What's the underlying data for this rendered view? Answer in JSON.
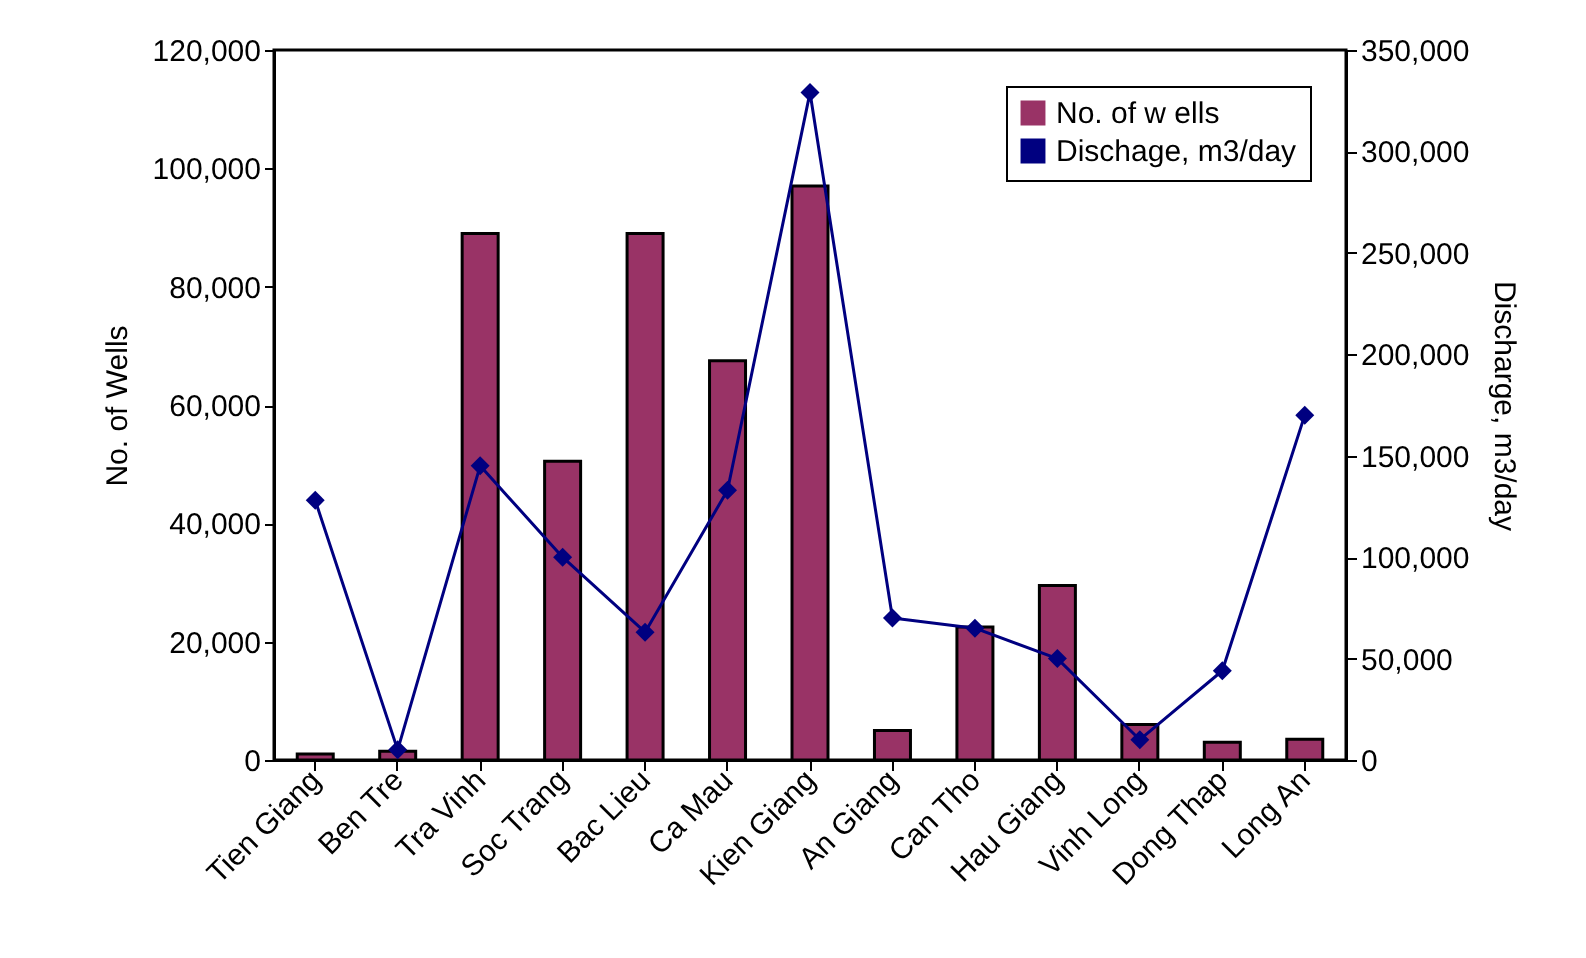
{
  "chart_data": {
    "type": "bar",
    "xlabel": null,
    "ylabel": "No. of Wells",
    "y2label": "Discharge, m3/day",
    "categories": [
      "Tien Giang",
      "Ben Tre",
      "Tra Vinh",
      "Soc Trang",
      "Bac Lieu",
      "Ca Mau",
      "Kien Giang",
      "An Giang",
      "Can Tho",
      "Hau Giang",
      "Vinh Long",
      "Dong Thap",
      "Long An"
    ],
    "series": [
      {
        "name": "No. of w ells",
        "color": "#993366",
        "values": [
          1000,
          1500,
          89000,
          50500,
          89000,
          67500,
          97000,
          5000,
          22500,
          29500,
          6000,
          3000,
          3500
        ]
      },
      {
        "name": "Dischage, m3/day",
        "type": "line",
        "axis": "y2",
        "color": "#000080",
        "values": [
          128000,
          5000,
          145000,
          100000,
          63000,
          133000,
          329000,
          70000,
          65000,
          50000,
          10000,
          44000,
          170000
        ]
      }
    ],
    "ylim": [
      0,
      120000
    ],
    "yticks": [
      0,
      {
        "value": 20000,
        "label": "20,000"
      },
      {
        "value": 40000,
        "label": "40,000"
      },
      {
        "value": 60000,
        "label": "60,000"
      },
      {
        "value": 80000,
        "label": "80,000"
      },
      {
        "value": 100000,
        "label": "100,000"
      },
      {
        "value": 120000,
        "label": "120,000"
      }
    ],
    "y2lim": [
      0,
      350000
    ],
    "y2ticks": [
      0,
      {
        "value": 50000,
        "label": "50,000"
      },
      {
        "value": 100000,
        "label": "100,000"
      },
      {
        "value": 150000,
        "label": "150,000"
      },
      {
        "value": 200000,
        "label": "200,000"
      },
      {
        "value": 250000,
        "label": "250,000"
      },
      {
        "value": 300000,
        "label": "300,000"
      },
      {
        "value": 350000,
        "label": "350,000"
      }
    ],
    "grid": false,
    "legend": "top right",
    "marker": "diamond",
    "line_style": "solid"
  }
}
